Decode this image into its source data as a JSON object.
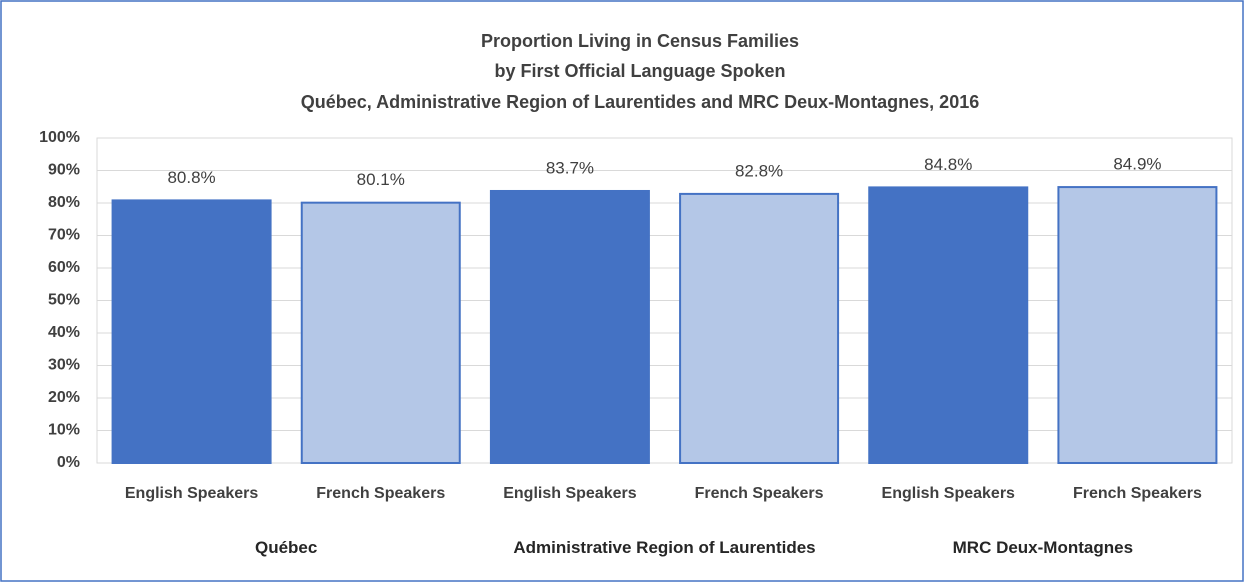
{
  "chart_data": {
    "type": "bar",
    "title": [
      "Proportion Living in Census Families",
      "by First Official Language Spoken",
      "Québec, Administrative Region of Laurentides and MRC Deux-Montagnes, 2016"
    ],
    "categories": [
      "English Speakers",
      "French Speakers",
      "English Speakers",
      "French Speakers",
      "English Speakers",
      "French Speakers"
    ],
    "groups": [
      "Québec",
      "Administrative Region of Laurentides",
      "MRC Deux-Montagnes"
    ],
    "values": [
      80.8,
      80.1,
      83.7,
      82.8,
      84.8,
      84.9
    ],
    "value_labels": [
      "80.8%",
      "80.1%",
      "83.7%",
      "82.8%",
      "84.8%",
      "84.9%"
    ],
    "colors": [
      "#4472c4",
      "#b4c7e7",
      "#4472c4",
      "#b4c7e7",
      "#4472c4",
      "#b4c7e7"
    ],
    "ylim": [
      0,
      100
    ],
    "yticks": [
      {
        "value": 0,
        "label": "0%"
      },
      {
        "value": 10,
        "label": "10%"
      },
      {
        "value": 20,
        "label": "20%"
      },
      {
        "value": 30,
        "label": "30%"
      },
      {
        "value": 40,
        "label": "40%"
      },
      {
        "value": 50,
        "label": "50%"
      },
      {
        "value": 60,
        "label": "60%"
      },
      {
        "value": 70,
        "label": "70%"
      },
      {
        "value": 80,
        "label": "80%"
      },
      {
        "value": 90,
        "label": "90%"
      },
      {
        "value": 100,
        "label": "100%"
      }
    ],
    "grid": true
  }
}
